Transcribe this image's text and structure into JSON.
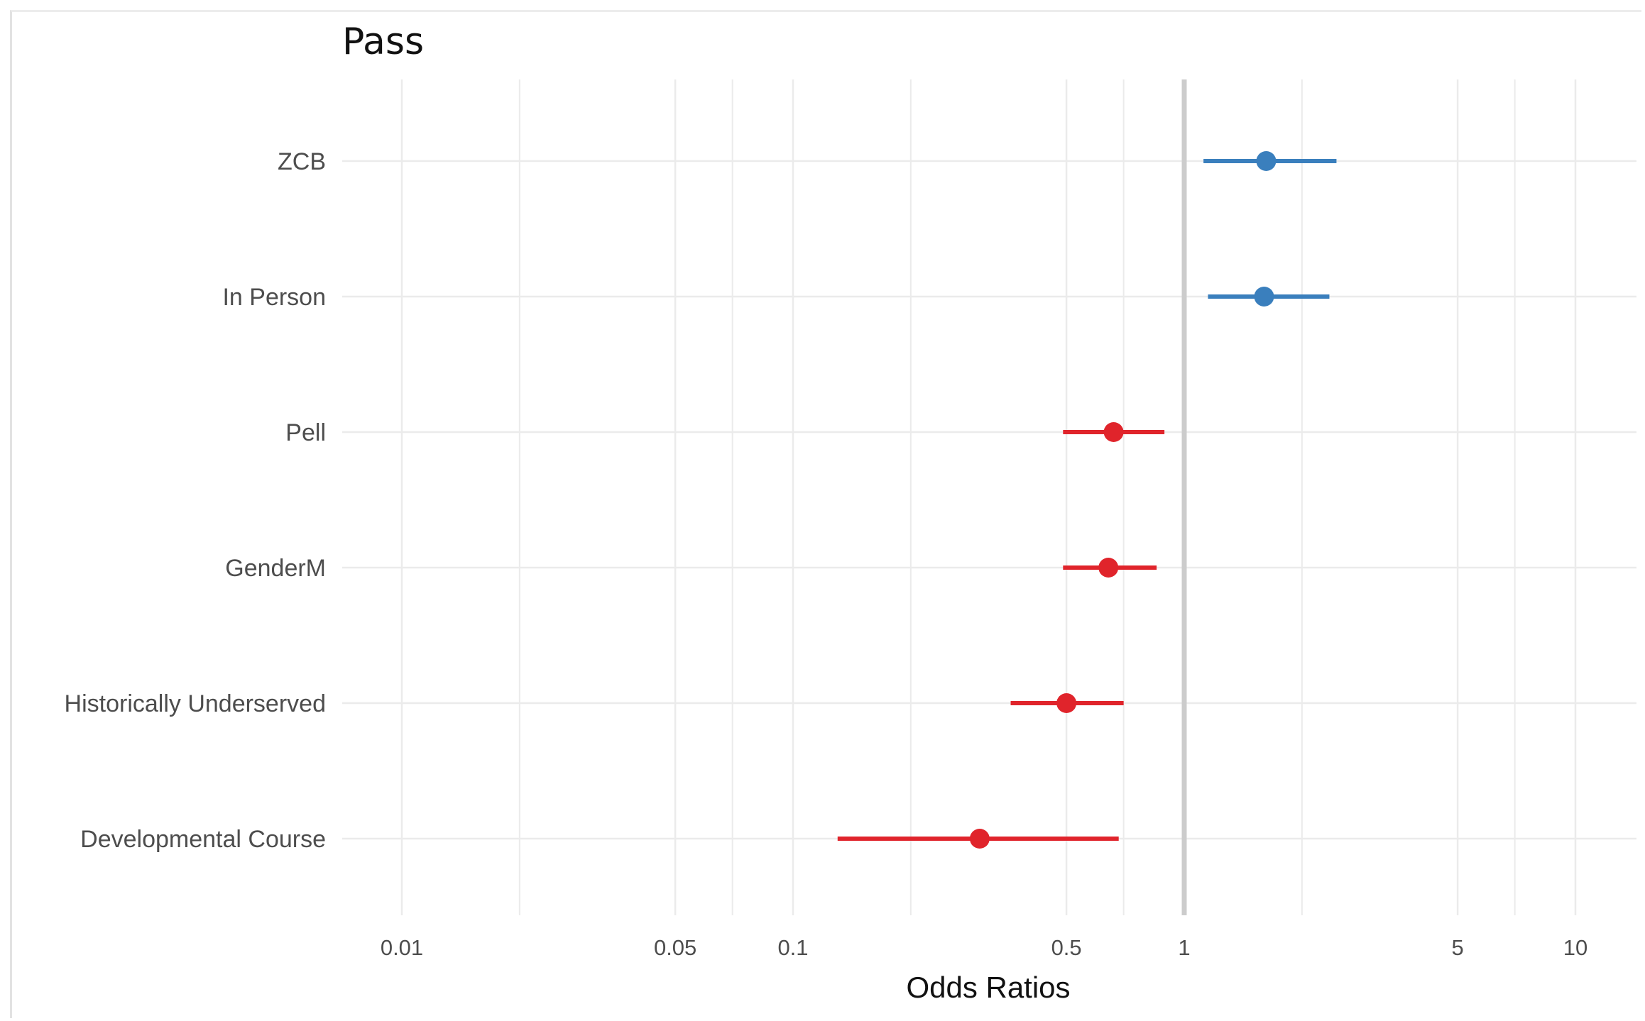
{
  "chart_data": {
    "type": "scatter",
    "subtype": "forest-plot",
    "title": "Pass",
    "xlabel": "Odds Ratios",
    "ylabel": "",
    "x_scale": "log",
    "xlim": [
      0.01,
      12
    ],
    "x_ticks": [
      0.01,
      0.05,
      0.1,
      0.5,
      1,
      5,
      10
    ],
    "x_tick_labels": [
      "0.01",
      "0.05",
      "0.1",
      "0.5",
      "1",
      "5",
      "10"
    ],
    "x_minor_gridlines": [
      0.02,
      0.07,
      0.2,
      0.7,
      2,
      7
    ],
    "reference_line": 1,
    "grid": true,
    "legend": "none",
    "colors": {
      "positive": "#3a7fbd",
      "negative": "#e0242b",
      "reference": "#cccccc",
      "grid": "#ebebeb"
    },
    "terms": [
      {
        "label": "ZCB",
        "estimate": 1.62,
        "ci_low": 1.12,
        "ci_high": 2.45,
        "direction": "positive"
      },
      {
        "label": "In Person",
        "estimate": 1.6,
        "ci_low": 1.15,
        "ci_high": 2.35,
        "direction": "positive"
      },
      {
        "label": "Pell",
        "estimate": 0.66,
        "ci_low": 0.49,
        "ci_high": 0.89,
        "direction": "negative"
      },
      {
        "label": "GenderM",
        "estimate": 0.64,
        "ci_low": 0.49,
        "ci_high": 0.85,
        "direction": "negative"
      },
      {
        "label": "Historically Underserved",
        "estimate": 0.5,
        "ci_low": 0.36,
        "ci_high": 0.7,
        "direction": "negative"
      },
      {
        "label": "Developmental Course",
        "estimate": 0.3,
        "ci_low": 0.13,
        "ci_high": 0.68,
        "direction": "negative"
      }
    ]
  }
}
